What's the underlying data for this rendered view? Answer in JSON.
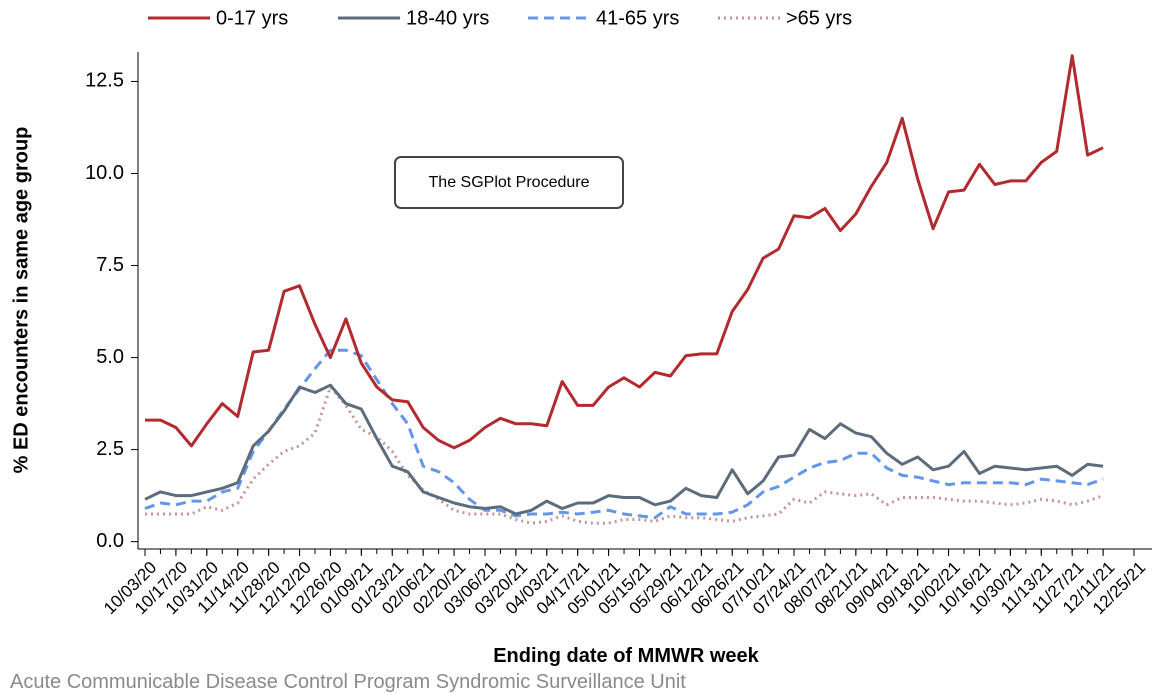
{
  "chart_data": {
    "type": "line",
    "ylabel": "% ED encounters in same age group",
    "xlabel": "Ending date of MMWR week",
    "annotation": "The SGPlot Procedure",
    "footer": "Acute Communicable Disease Control Program Syndromic Surveillance Unit",
    "legend": "top",
    "x": [
      "10/03/20",
      "10/10/20",
      "10/17/20",
      "10/24/20",
      "10/31/20",
      "11/07/20",
      "11/14/20",
      "11/21/20",
      "11/28/20",
      "12/05/20",
      "12/12/20",
      "12/19/20",
      "12/26/20",
      "01/02/21",
      "01/09/21",
      "01/16/21",
      "01/23/21",
      "01/30/21",
      "02/06/21",
      "02/13/21",
      "02/20/21",
      "02/27/21",
      "03/06/21",
      "03/13/21",
      "03/20/21",
      "03/27/21",
      "04/03/21",
      "04/10/21",
      "04/17/21",
      "04/24/21",
      "05/01/21",
      "05/08/21",
      "05/15/21",
      "05/22/21",
      "05/29/21",
      "06/05/21",
      "06/12/21",
      "06/19/21",
      "06/26/21",
      "07/03/21",
      "07/10/21",
      "07/17/21",
      "07/24/21",
      "07/31/21",
      "08/07/21",
      "08/14/21",
      "08/21/21",
      "08/28/21",
      "09/04/21",
      "09/11/21",
      "09/18/21",
      "09/25/21",
      "10/02/21",
      "10/09/21",
      "10/16/21",
      "10/23/21",
      "10/30/21",
      "11/06/21",
      "11/13/21",
      "11/20/21",
      "11/27/21",
      "12/04/21",
      "12/11/21"
    ],
    "xlim": [
      "10/03/20",
      "12/25/21"
    ],
    "xticks": [
      "10/03/20",
      "10/17/20",
      "10/31/20",
      "11/14/20",
      "11/28/20",
      "12/12/20",
      "12/26/20",
      "01/09/21",
      "01/23/21",
      "02/06/21",
      "02/20/21",
      "03/06/21",
      "03/20/21",
      "04/03/21",
      "04/17/21",
      "05/01/21",
      "05/15/21",
      "05/29/21",
      "06/12/21",
      "06/26/21",
      "07/10/21",
      "07/24/21",
      "08/07/21",
      "08/21/21",
      "09/04/21",
      "09/18/21",
      "10/02/21",
      "10/16/21",
      "10/30/21",
      "11/13/21",
      "11/27/21",
      "12/11/21",
      "12/25/21"
    ],
    "ylim": [
      -0.2,
      13.3
    ],
    "yticks": [
      {
        "value": 0,
        "label": "0.0"
      },
      2.5,
      {
        "value": 5,
        "label": "5.0"
      },
      7.5,
      {
        "value": 10,
        "label": "10.0"
      },
      12.5
    ],
    "series": [
      {
        "name": "0-17 yrs",
        "color": "#b22a2e",
        "dash": "solid",
        "values": [
          3.3,
          3.3,
          3.1,
          2.6,
          3.2,
          3.75,
          3.4,
          5.15,
          5.2,
          6.8,
          6.95,
          5.9,
          5.0,
          6.05,
          4.85,
          4.2,
          3.85,
          3.8,
          3.1,
          2.75,
          2.55,
          2.75,
          3.1,
          3.35,
          3.2,
          3.2,
          3.15,
          4.35,
          3.7,
          3.7,
          4.2,
          4.45,
          4.2,
          4.6,
          4.5,
          5.05,
          5.1,
          5.1,
          6.25,
          6.85,
          7.7,
          7.95,
          8.85,
          8.8,
          9.05,
          8.45,
          8.9,
          9.65,
          10.3,
          11.5,
          9.85,
          8.5,
          9.5,
          9.55,
          10.25,
          9.7,
          9.8,
          9.8,
          10.3,
          10.6,
          13.2,
          10.5,
          10.7
        ]
      },
      {
        "name": "18-40 yrs",
        "color": "#5c6c7c",
        "dash": "solid",
        "values": [
          1.15,
          1.35,
          1.25,
          1.25,
          1.35,
          1.45,
          1.6,
          2.6,
          3.0,
          3.55,
          4.2,
          4.05,
          4.25,
          3.75,
          3.6,
          2.8,
          2.05,
          1.9,
          1.35,
          1.2,
          1.05,
          0.95,
          0.9,
          0.95,
          0.75,
          0.85,
          1.1,
          0.9,
          1.05,
          1.05,
          1.25,
          1.2,
          1.2,
          1.0,
          1.1,
          1.45,
          1.25,
          1.2,
          1.95,
          1.3,
          1.65,
          2.3,
          2.35,
          3.05,
          2.8,
          3.2,
          2.95,
          2.85,
          2.4,
          2.1,
          2.3,
          1.95,
          2.05,
          2.45,
          1.85,
          2.05,
          2.0,
          1.95,
          2.0,
          2.05,
          1.8,
          2.1,
          2.05
        ]
      },
      {
        "name": "41-65 yrs",
        "color": "#6495ed",
        "dash": "dash",
        "values": [
          0.9,
          1.05,
          1.0,
          1.1,
          1.1,
          1.35,
          1.45,
          2.45,
          3.0,
          3.6,
          4.15,
          4.7,
          5.2,
          5.2,
          5.05,
          4.4,
          3.75,
          3.2,
          2.05,
          1.9,
          1.6,
          1.15,
          0.85,
          0.85,
          0.7,
          0.75,
          0.75,
          0.8,
          0.75,
          0.8,
          0.85,
          0.75,
          0.7,
          0.65,
          0.95,
          0.75,
          0.75,
          0.75,
          0.8,
          1.0,
          1.35,
          1.5,
          1.75,
          2.0,
          2.15,
          2.2,
          2.4,
          2.4,
          2.0,
          1.8,
          1.75,
          1.65,
          1.55,
          1.6,
          1.6,
          1.6,
          1.6,
          1.55,
          1.7,
          1.65,
          1.6,
          1.55,
          1.7
        ]
      },
      {
        "name": ">65 yrs",
        "color": "#c49494",
        "dash": "dot",
        "values": [
          0.75,
          0.75,
          0.75,
          0.75,
          0.95,
          0.85,
          1.05,
          1.7,
          2.1,
          2.45,
          2.6,
          2.95,
          4.2,
          3.7,
          3.05,
          2.85,
          2.45,
          1.8,
          1.4,
          1.15,
          0.85,
          0.75,
          0.75,
          0.75,
          0.6,
          0.5,
          0.55,
          0.7,
          0.55,
          0.5,
          0.5,
          0.6,
          0.6,
          0.55,
          0.7,
          0.65,
          0.65,
          0.6,
          0.55,
          0.65,
          0.7,
          0.75,
          1.15,
          1.05,
          1.35,
          1.3,
          1.25,
          1.3,
          1.0,
          1.2,
          1.2,
          1.2,
          1.15,
          1.1,
          1.1,
          1.05,
          1.0,
          1.05,
          1.15,
          1.1,
          1.0,
          1.1,
          1.25
        ]
      }
    ]
  }
}
